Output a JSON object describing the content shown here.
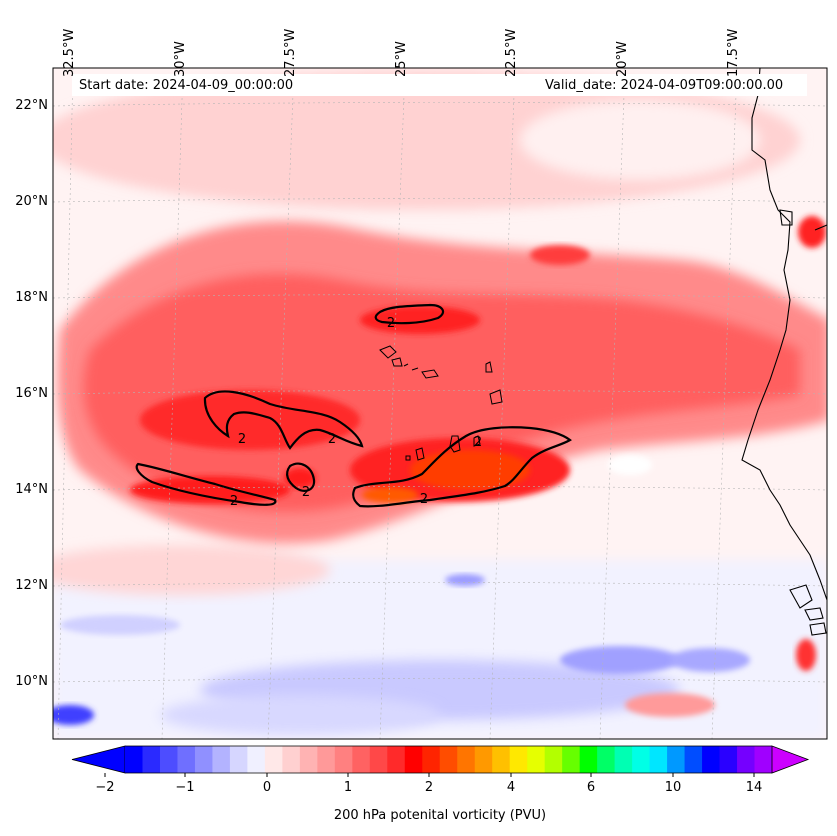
{
  "header": {
    "start_date": "Start date: 2024-04-09_00:00:00",
    "valid_date": "Valid_date: 2024-04-09T09:00:00.00"
  },
  "map": {
    "lon_ticks": [
      "32.5°W",
      "30°W",
      "27.5°W",
      "25°W",
      "22.5°W",
      "20°W",
      "17.5°W"
    ],
    "lon_values": [
      -32.5,
      -30,
      -27.5,
      -25,
      -22.5,
      -20,
      -17.5
    ],
    "lat_ticks": [
      "22°N",
      "20°N",
      "18°N",
      "16°N",
      "14°N",
      "12°N",
      "10°N"
    ],
    "lat_values": [
      22,
      20,
      18,
      16,
      14,
      12,
      10
    ],
    "lon_range": [
      -33.1,
      -15.6
    ],
    "lat_range": [
      8.9,
      22.8
    ],
    "contour_label": "2",
    "contour_level": 2
  },
  "colorbar": {
    "title": "200 hPa potenital vorticity (PVU)",
    "tick_labels": [
      "−2",
      "−1",
      "0",
      "1",
      "2",
      "4",
      "6",
      "10",
      "14"
    ],
    "colors": [
      "#0000ff",
      "#2a2aff",
      "#4d4dff",
      "#6f6fff",
      "#9090ff",
      "#b3b3ff",
      "#d6d6ff",
      "#f0f0ff",
      "#ffe8e8",
      "#ffd0d0",
      "#ffb3b3",
      "#ff9999",
      "#ff8080",
      "#ff6262",
      "#ff4848",
      "#ff2a2a",
      "#ff0000",
      "#ff2400",
      "#ff4d00",
      "#ff7500",
      "#ff9900",
      "#ffc000",
      "#ffe800",
      "#e6ff00",
      "#b3ff00",
      "#66ff00",
      "#00ff00",
      "#00ff66",
      "#00ffb3",
      "#00ffe6",
      "#00e6ff",
      "#0099ff",
      "#004dff",
      "#0000ff",
      "#2a00ff",
      "#7500ff",
      "#a000ff"
    ],
    "under_color": "#0000ff",
    "over_color": "#cc00ff"
  }
}
